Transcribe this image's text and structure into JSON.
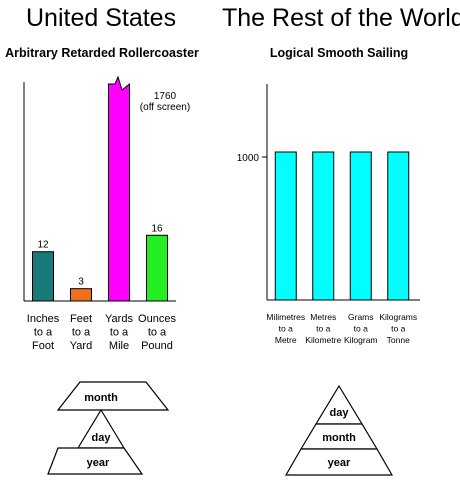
{
  "us": {
    "heading": "United States",
    "subtitle": "Arbitrary Retarded Rollercoaster",
    "annotation": [
      "1760",
      "(off screen)"
    ]
  },
  "world": {
    "heading": "The Rest of the World",
    "subtitle": "Logical Smooth Sailing",
    "ytick": "1000"
  },
  "pyramids": {
    "us": [
      "month",
      "day",
      "year"
    ],
    "world": [
      "day",
      "month",
      "year"
    ]
  },
  "colors": {
    "teal": "#1a7a7a",
    "orange": "#f07020",
    "magenta": "#ff00ff",
    "green": "#22ee22",
    "cyan": "#00ffff"
  },
  "chart_data": [
    {
      "type": "bar",
      "title": "Arbitrary Retarded Rollercoaster",
      "categories": [
        [
          "Inches",
          "to a",
          "Foot"
        ],
        [
          "Feet",
          "to a",
          "Yard"
        ],
        [
          "Yards",
          "to a",
          "Mile"
        ],
        [
          "Ounces",
          "to a",
          "Pound"
        ]
      ],
      "values": [
        12,
        3,
        1760,
        16
      ],
      "data_labels": [
        "12",
        "3",
        "",
        "16"
      ],
      "colors": [
        "#1a7a7a",
        "#f07020",
        "#ff00ff",
        "#22ee22"
      ],
      "axis_max": 28,
      "clipped": [
        false,
        false,
        true,
        false
      ]
    },
    {
      "type": "bar",
      "title": "Logical Smooth Sailing",
      "categories": [
        [
          "Milimetres",
          "to a",
          "Metre"
        ],
        [
          "Metres",
          "to a",
          "Kilometre"
        ],
        [
          "Grams",
          "to a",
          "Kilogram"
        ],
        [
          "Kilograms",
          "to a",
          "Tonne"
        ]
      ],
      "values": [
        1000,
        1000,
        1000,
        1000
      ],
      "colors": [
        "#00ffff",
        "#00ffff",
        "#00ffff",
        "#00ffff"
      ],
      "ylim": [
        0,
        1400
      ],
      "yticks": [
        1000
      ]
    }
  ]
}
